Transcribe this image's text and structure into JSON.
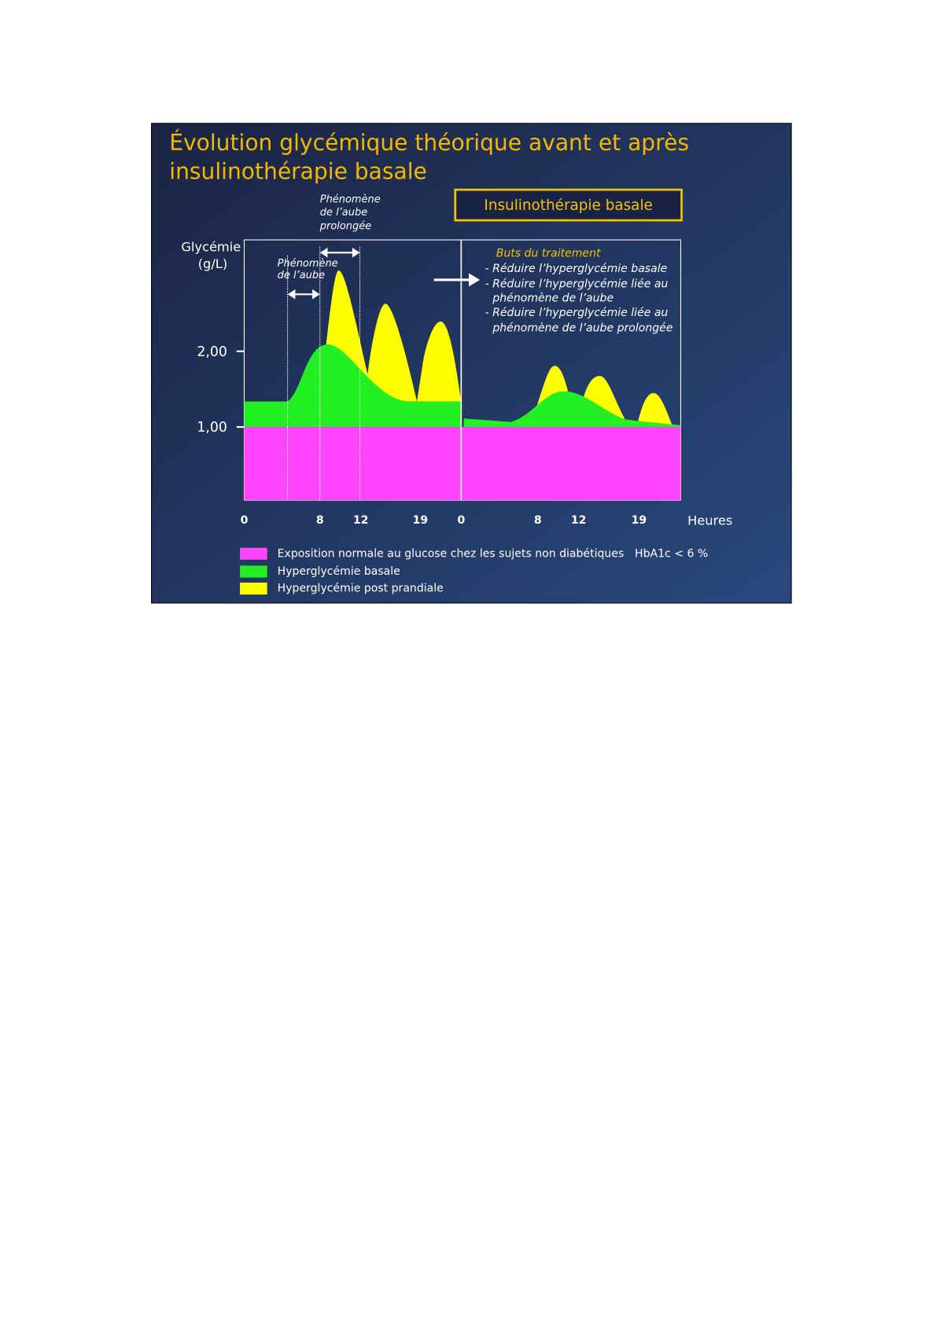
{
  "slide": {
    "title": [
      "Évolution glycémique théorique avant et après",
      "insulinothérapie basale"
    ],
    "box_label": "Insulinothérapie basale",
    "annotation_prolonged": [
      "Phénomène",
      "de l’aube",
      "prolongée"
    ],
    "annotation_dawn": [
      "Phénomène",
      "de l’aube"
    ],
    "y_label": [
      "Glycémie",
      "(g/L)"
    ],
    "y_ticks": [
      "2,00",
      "1,00"
    ],
    "x_ticks": [
      "0",
      "8",
      "12",
      "19",
      "0",
      "8",
      "12",
      "19"
    ],
    "x_label": "Heures",
    "goals_title": "Buts du traitement",
    "goals": [
      "- Réduire l’hyperglycémie basale",
      "- Réduire l’hyperglycémie liée au",
      "phénomène de l’aube",
      "- Réduire l’hyperglycémie liée au",
      "phénomène de l’aube prolongée"
    ],
    "legend": [
      "Exposition normale au glucose chez les sujets non diabétiques",
      "Hyperglycémie basale",
      "Hyperglycémie post prandiale"
    ],
    "legend_note": "HbA1c < 6 %"
  }
}
